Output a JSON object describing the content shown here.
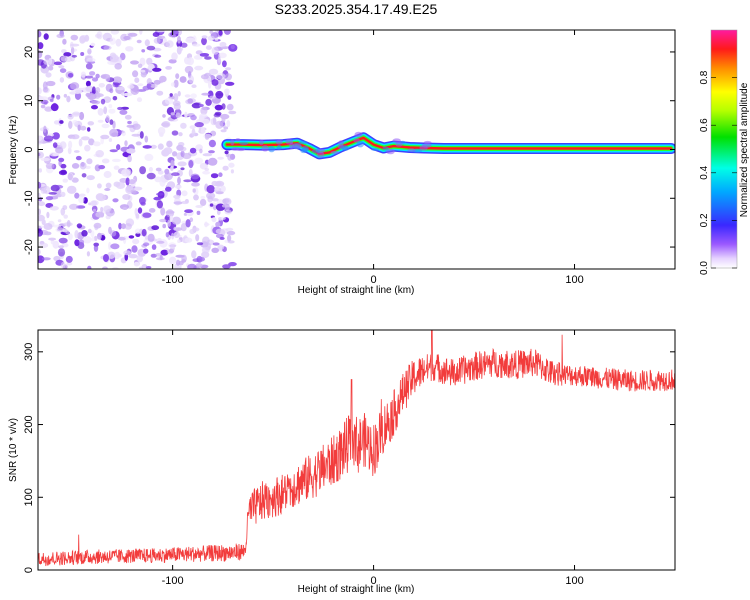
{
  "figure_title": "S233.2025.354.17.49.E25",
  "colors": {
    "snr_line": "#f23c3c",
    "speckle_dark": "#6a1fe0",
    "speckle_light": "#d9c8f7",
    "frame": "#000000"
  },
  "chart_data": [
    {
      "id": "spectrogram",
      "type": "heatmap",
      "title": "S233.2025.354.17.49.E25",
      "xlabel": "Height of straight line (km)",
      "ylabel": "Frequency (Hz)",
      "xlim": [
        -167,
        150
      ],
      "ylim": [
        -24.5,
        24.5
      ],
      "x_ticks": [
        -100,
        0,
        100
      ],
      "x_tick_labels": [
        "-100",
        "0",
        "100"
      ],
      "y_ticks": [
        -20,
        -10,
        0,
        10,
        20
      ],
      "y_tick_labels": [
        "-20",
        "-10",
        "0",
        "10",
        "20"
      ],
      "noise_region_x": [
        -167,
        -70
      ],
      "signal_trace": {
        "x": [
          -73,
          -65,
          -55,
          -45,
          -38,
          -32,
          -27,
          -22,
          -16,
          -10,
          -5,
          0,
          5,
          10,
          18,
          25,
          35,
          60,
          100,
          148
        ],
        "freq_hz": [
          1.0,
          1.0,
          0.9,
          1.0,
          1.3,
          0.2,
          -0.9,
          -0.6,
          0.6,
          1.6,
          2.4,
          1.0,
          0.3,
          0.7,
          0.4,
          0.3,
          0.2,
          0.2,
          0.2,
          0.2
        ]
      },
      "colorbar": {
        "label": "Normalized spectral amplitude",
        "range": [
          0.0,
          1.0
        ],
        "ticks": [
          0.0,
          0.2,
          0.4,
          0.6,
          0.8
        ],
        "tick_labels": [
          "0.0",
          "0.2",
          "0.4",
          "0.6",
          "0.8"
        ],
        "colormap": "rainbow (white-violet-blue-cyan-green-yellow-orange-red-magenta)"
      }
    },
    {
      "id": "snr",
      "type": "line",
      "xlabel": "Height of straight line (km)",
      "ylabel": "SNR (10 * v/v)",
      "xlim": [
        -167,
        150
      ],
      "ylim": [
        0,
        330
      ],
      "x_ticks": [
        -100,
        0,
        100
      ],
      "x_tick_labels": [
        "-100",
        "0",
        "100"
      ],
      "y_ticks": [
        0,
        100,
        200,
        300
      ],
      "y_tick_labels": [
        "0",
        "100",
        "200",
        "300"
      ],
      "series": [
        {
          "name": "SNR",
          "x": [
            -167,
            -140,
            -110,
            -90,
            -70,
            -64,
            -62,
            -55,
            -45,
            -40,
            -30,
            -20,
            -15,
            -12,
            -10,
            -8,
            -5,
            0,
            5,
            10,
            15,
            20,
            25,
            30,
            40,
            50,
            60,
            70,
            80,
            88,
            95,
            100,
            110,
            120,
            130,
            150
          ],
          "y": [
            15,
            18,
            20,
            22,
            24,
            26,
            80,
            95,
            105,
            115,
            130,
            150,
            165,
            175,
            185,
            170,
            180,
            165,
            195,
            215,
            245,
            265,
            275,
            280,
            270,
            280,
            285,
            282,
            285,
            272,
            268,
            268,
            265,
            262,
            260,
            262
          ],
          "noise_amp": [
            10,
            10,
            10,
            11,
            12,
            12,
            25,
            28,
            28,
            30,
            32,
            35,
            38,
            40,
            40,
            40,
            38,
            38,
            35,
            32,
            28,
            26,
            22,
            20,
            20,
            20,
            20,
            20,
            20,
            18,
            16,
            15,
            15,
            15,
            15,
            15
          ]
        }
      ],
      "annotations": [
        {
          "x": -11,
          "y": 262,
          "text": ""
        },
        {
          "x": 29,
          "y": 330,
          "text": ""
        }
      ]
    }
  ]
}
